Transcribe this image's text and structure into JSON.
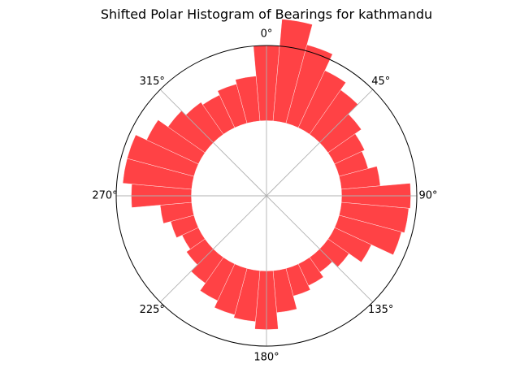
{
  "chart_data": {
    "type": "polar-bar",
    "title": "Shifted Polar Histogram of Bearings for kathmandu",
    "theta_zero": "north",
    "theta_direction": "clockwise",
    "bin_width_deg": 10,
    "radial_offset": 0.5,
    "radial_max": 1.0,
    "grid": true,
    "angle_ticks": [
      "0°",
      "45°",
      "90°",
      "135°",
      "180°",
      "225°",
      "270°",
      "315°"
    ],
    "angles_deg": [
      0,
      10,
      20,
      30,
      40,
      50,
      60,
      70,
      80,
      90,
      100,
      110,
      120,
      130,
      140,
      150,
      160,
      170,
      180,
      190,
      200,
      210,
      220,
      230,
      240,
      250,
      260,
      270,
      280,
      290,
      300,
      310,
      320,
      330,
      340,
      350
    ],
    "values": [
      0.5,
      0.68,
      0.54,
      0.42,
      0.36,
      0.27,
      0.22,
      0.2,
      0.26,
      0.46,
      0.45,
      0.43,
      0.27,
      0.17,
      0.12,
      0.16,
      0.19,
      0.28,
      0.39,
      0.34,
      0.32,
      0.27,
      0.21,
      0.15,
      0.12,
      0.16,
      0.21,
      0.4,
      0.46,
      0.46,
      0.38,
      0.3,
      0.26,
      0.24,
      0.27,
      0.3
    ],
    "color": "#ff4245"
  }
}
